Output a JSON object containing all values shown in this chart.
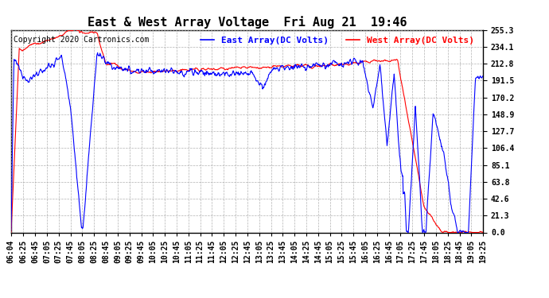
{
  "title": "East & West Array Voltage  Fri Aug 21  19:46",
  "copyright": "Copyright 2020 Cartronics.com",
  "legend_east": "East Array(DC Volts)",
  "legend_west": "West Array(DC Volts)",
  "east_color": "blue",
  "west_color": "red",
  "bg_color": "white",
  "grid_color": "#aaaaaa",
  "yticks": [
    0.0,
    21.3,
    42.6,
    63.8,
    85.1,
    106.4,
    127.7,
    148.9,
    170.2,
    191.5,
    212.8,
    234.1,
    255.3
  ],
  "ymin": 0.0,
  "ymax": 255.3,
  "xtick_labels": [
    "06:04",
    "06:25",
    "06:45",
    "07:05",
    "07:25",
    "07:45",
    "08:05",
    "08:25",
    "08:45",
    "09:05",
    "09:25",
    "09:45",
    "10:05",
    "10:25",
    "10:45",
    "11:05",
    "11:25",
    "11:45",
    "12:05",
    "12:25",
    "12:45",
    "13:05",
    "13:25",
    "13:45",
    "14:05",
    "14:25",
    "14:45",
    "15:05",
    "15:25",
    "15:45",
    "16:05",
    "16:25",
    "16:45",
    "17:05",
    "17:25",
    "17:45",
    "18:05",
    "18:25",
    "18:45",
    "19:05",
    "19:25"
  ],
  "font_name": "monospace",
  "title_fontsize": 11,
  "tick_fontsize": 7,
  "legend_fontsize": 8,
  "copyright_fontsize": 7
}
